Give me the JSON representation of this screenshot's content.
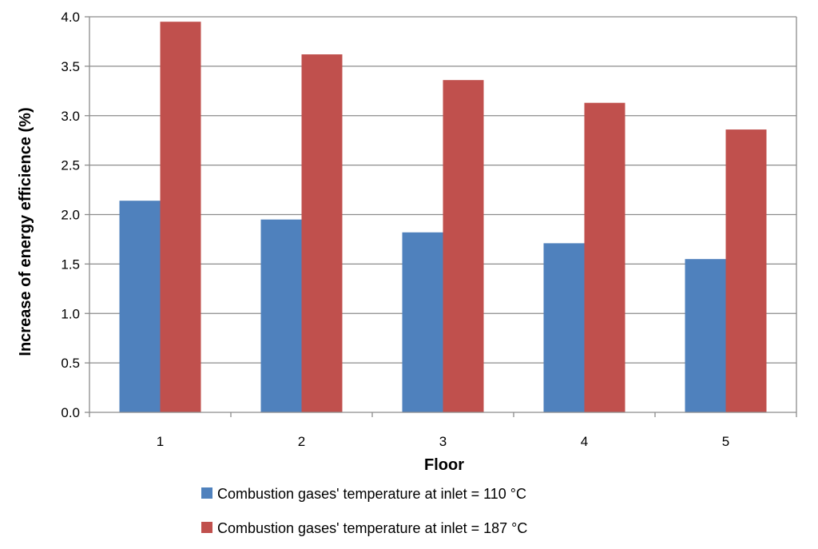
{
  "chart_data": {
    "type": "bar",
    "title": "",
    "xlabel": "Floor",
    "ylabel": "Increase of energy efficience (%)",
    "categories": [
      "1",
      "2",
      "3",
      "4",
      "5"
    ],
    "series": [
      {
        "name": "Combustion gases' temperature at inlet = 110 °C",
        "color": "#4F81BD",
        "values": [
          2.14,
          1.95,
          1.82,
          1.71,
          1.55
        ]
      },
      {
        "name": "Combustion gases' temperature at inlet = 187 °C",
        "color": "#C0504D",
        "values": [
          3.95,
          3.62,
          3.36,
          3.13,
          2.86
        ]
      }
    ],
    "ylim": [
      0,
      4.0
    ],
    "yticks": [
      "0.0",
      "0.5",
      "1.0",
      "1.5",
      "2.0",
      "2.5",
      "3.0",
      "3.5",
      "4.0"
    ],
    "grid": true,
    "legend_position": "bottom"
  }
}
